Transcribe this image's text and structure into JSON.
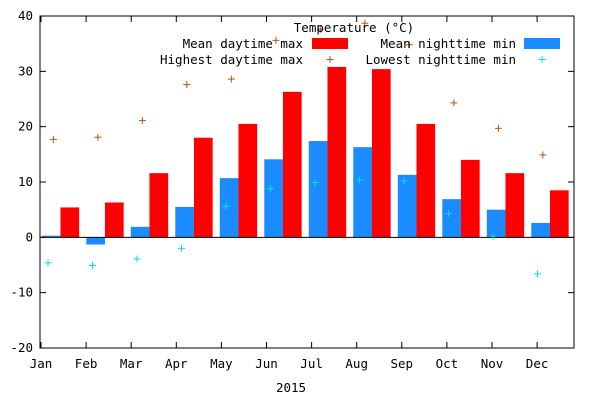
{
  "chart_data": {
    "type": "bar",
    "title": "",
    "xlabel": "2015",
    "ylabel": "",
    "ylim": [
      -20,
      40
    ],
    "yticks": [
      -20,
      -10,
      0,
      10,
      20,
      30,
      40
    ],
    "grid": false,
    "legend_title": "Temperature (°C)",
    "legend_position": "top-right",
    "categories": [
      "Jan",
      "Feb",
      "Mar",
      "Apr",
      "May",
      "Jun",
      "Jul",
      "Aug",
      "Sep",
      "Oct",
      "Nov",
      "Dec"
    ],
    "series": [
      {
        "name": "Mean nighttime min",
        "kind": "bar",
        "color": "#1a8cff",
        "values": [
          0.3,
          -1.3,
          1.9,
          5.5,
          10.7,
          14.1,
          17.4,
          16.3,
          11.3,
          6.9,
          5.0,
          2.6
        ]
      },
      {
        "name": "Mean daytime max",
        "kind": "bar",
        "color": "#ff0000",
        "values": [
          5.4,
          6.3,
          11.6,
          18.0,
          20.5,
          26.3,
          30.8,
          30.4,
          20.5,
          14.0,
          11.6,
          8.5
        ]
      },
      {
        "name": "Highest daytime max",
        "kind": "marker",
        "color": "#b5541b",
        "values": [
          17.7,
          18.1,
          21.1,
          27.6,
          28.6,
          35.6,
          37.6,
          38.7,
          34.8,
          24.3,
          19.7,
          14.9
        ]
      },
      {
        "name": "Lowest nighttime min",
        "kind": "marker",
        "color": "#00e0ee",
        "values": [
          -4.6,
          -5.1,
          -3.9,
          -2.0,
          5.6,
          8.8,
          9.9,
          10.4,
          10.2,
          4.3,
          0.2,
          -6.6
        ]
      }
    ],
    "legend_order": [
      "Mean daytime max",
      "Mean nighttime min",
      "Highest daytime max",
      "Lowest nighttime min"
    ]
  }
}
